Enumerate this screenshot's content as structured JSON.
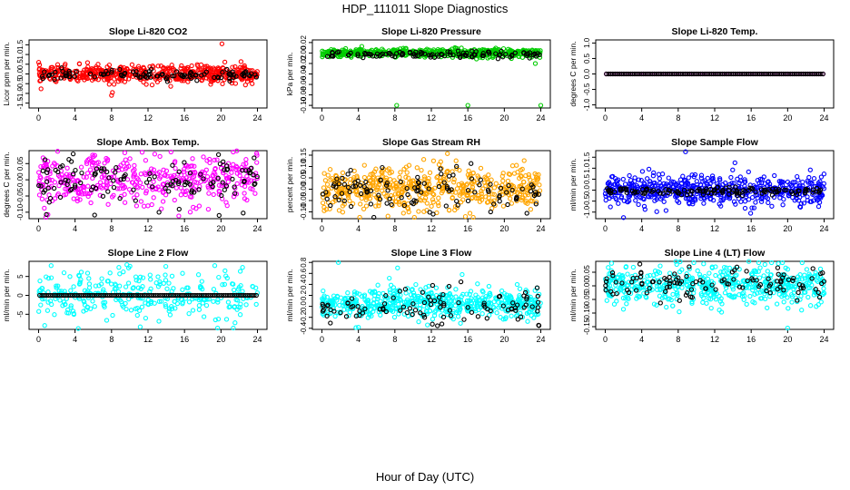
{
  "title": "HDP_111011  Slope Diagnostics",
  "xlabel": "Hour of Day (UTC)",
  "x_ticks": [
    0,
    4,
    8,
    12,
    16,
    20,
    24
  ],
  "chart_data": [
    {
      "type": "scatter",
      "title": "Slope Li-820 CO2",
      "ylabel": "Licor ppm per min.",
      "yticks": [
        -1.5,
        -1.0,
        -0.5,
        0.0,
        0.5,
        1.0,
        1.5
      ],
      "ytick_labels": [
        "-1.5",
        "-1.0",
        "-0.5",
        "0.0",
        "0.5",
        "1.0",
        "1.5"
      ],
      "ylim": [
        -1.75,
        1.75
      ],
      "xlim": [
        0,
        24
      ],
      "series": [
        {
          "color": "#ff0000",
          "center": 0.0,
          "spread": 0.22,
          "count": 520,
          "outliers": [
            [
              20.1,
              1.55
            ],
            [
              8.0,
              -1.1
            ],
            [
              8.1,
              -0.95
            ]
          ]
        },
        {
          "color": "#000000",
          "center": -0.05,
          "spread": 0.12,
          "count": 110,
          "outliers": []
        }
      ]
    },
    {
      "type": "scatter",
      "title": "Slope Li-820 Pressure",
      "ylabel": "kPa per min.",
      "yticks": [
        -0.1,
        -0.08,
        -0.06,
        -0.04,
        -0.02,
        0.0,
        0.02
      ],
      "ytick_labels": [
        "-0.10",
        "-0.08",
        "-0.06",
        "-0.04",
        "-0.02",
        "0.00",
        "0.02"
      ],
      "ylim": [
        -0.105,
        0.025
      ],
      "xlim": [
        0,
        24
      ],
      "series": [
        {
          "color": "#00cc00",
          "center": 0.0,
          "spread": 0.004,
          "count": 520,
          "outliers": [
            [
              8.2,
              -0.1
            ],
            [
              16.0,
              -0.1
            ],
            [
              24.0,
              -0.1
            ],
            [
              23.4,
              -0.02
            ]
          ]
        },
        {
          "color": "#000000",
          "center": -0.003,
          "spread": 0.003,
          "count": 110,
          "outliers": []
        }
      ]
    },
    {
      "type": "scatter",
      "title": "Slope Li-820 Temp.",
      "ylabel": "degrees C per min.",
      "yticks": [
        -1.0,
        -0.5,
        0.0,
        0.5,
        1.0
      ],
      "ytick_labels": [
        "-1.0",
        "-0.5",
        "0.0",
        "0.5",
        "1.0"
      ],
      "ylim": [
        -1.1,
        1.1
      ],
      "xlim": [
        0,
        24
      ],
      "series": [
        {
          "color": "#ff00ff",
          "center": 0.0,
          "spread": 0.0,
          "count": 100,
          "outliers": []
        },
        {
          "color": "#000000",
          "center": 0.0,
          "spread": 0.0,
          "count": 100,
          "outliers": []
        }
      ]
    },
    {
      "type": "scatter",
      "title": "Slope Amb. Box Temp.",
      "ylabel": "degrees C per min.",
      "yticks": [
        -0.1,
        -0.05,
        0.0,
        0.05
      ],
      "ytick_labels": [
        "-0.10",
        "-0.05",
        "0.00",
        "0.05"
      ],
      "ylim": [
        -0.12,
        0.09
      ],
      "xlim": [
        0,
        24
      ],
      "series": [
        {
          "color": "#ff00ff",
          "center": 0.0,
          "spread": 0.038,
          "count": 420,
          "outliers": []
        },
        {
          "color": "#000000",
          "center": -0.01,
          "spread": 0.04,
          "count": 120,
          "outliers": [
            [
              3.8,
              0.08
            ],
            [
              19.8,
              -0.11
            ],
            [
              13.2,
              -0.1
            ]
          ]
        }
      ]
    },
    {
      "type": "scatter",
      "title": "Slope Gas Stream RH",
      "ylabel": "percent per min.",
      "yticks": [
        -0.1,
        -0.05,
        0.0,
        0.05,
        0.1,
        0.15
      ],
      "ytick_labels": [
        "-0.10",
        "-0.05",
        "0.00",
        "0.05",
        "0.10",
        "0.15"
      ],
      "ylim": [
        -0.13,
        0.17
      ],
      "xlim": [
        0,
        24
      ],
      "series": [
        {
          "color": "#ffa500",
          "center": 0.0,
          "spread": 0.05,
          "count": 520,
          "outliers": []
        },
        {
          "color": "#000000",
          "center": 0.0,
          "spread": 0.04,
          "count": 110,
          "outliers": [
            [
              12.2,
              -0.11
            ],
            [
              18.5,
              -0.1
            ],
            [
              13.0,
              0.09
            ]
          ]
        }
      ]
    },
    {
      "type": "scatter",
      "title": "Slope Sample Flow",
      "ylabel": "ml/min per min.",
      "yticks": [
        -1.0,
        -0.5,
        0.0,
        0.5,
        1.0,
        1.5
      ],
      "ytick_labels": [
        "-1.0",
        "-0.5",
        "0.0",
        "0.5",
        "1.0",
        "1.5"
      ],
      "ylim": [
        -1.3,
        1.8
      ],
      "xlim": [
        0,
        24
      ],
      "series": [
        {
          "color": "#0000ff",
          "center": 0.0,
          "spread": 0.35,
          "count": 560,
          "outliers": [
            [
              8.8,
              1.75
            ],
            [
              2.0,
              -1.25
            ]
          ]
        },
        {
          "color": "#000000",
          "center": -0.05,
          "spread": 0.08,
          "count": 130,
          "outliers": []
        }
      ]
    },
    {
      "type": "scatter",
      "title": "Slope Line 2 Flow",
      "ylabel": "ml/min per min.",
      "yticks": [
        -5,
        0,
        5
      ],
      "ytick_labels": [
        "-5",
        "0",
        "5"
      ],
      "ylim": [
        -9,
        9
      ],
      "xlim": [
        0,
        24
      ],
      "series": [
        {
          "color": "#00ffff",
          "center": 0.0,
          "spread": 3.5,
          "count": 300,
          "outliers": []
        },
        {
          "color": "#000000",
          "center": 0.0,
          "spread": 0.0,
          "count": 100,
          "outliers": []
        }
      ]
    },
    {
      "type": "scatter",
      "title": "Slope Line 3 Flow",
      "ylabel": "ml/min per min.",
      "yticks": [
        -0.4,
        -0.2,
        0.0,
        0.2,
        0.4,
        0.6,
        0.8
      ],
      "ytick_labels": [
        "-0.4",
        "-0.2",
        "0.0",
        "0.2",
        "0.4",
        "0.6",
        "0.8"
      ],
      "ylim": [
        -0.42,
        0.82
      ],
      "xlim": [
        0,
        24
      ],
      "series": [
        {
          "color": "#00ffff",
          "center": 0.05,
          "spread": 0.14,
          "count": 560,
          "outliers": [
            [
              1.8,
              0.8
            ],
            [
              8.3,
              0.7
            ],
            [
              4.0,
              -0.38
            ]
          ]
        },
        {
          "color": "#000000",
          "center": 0.0,
          "spread": 0.15,
          "count": 100,
          "outliers": [
            [
              23.8,
              -0.35
            ]
          ]
        }
      ]
    },
    {
      "type": "scatter",
      "title": "Slope Line 4 (LT) Flow",
      "ylabel": "ml/min per min.",
      "yticks": [
        -0.15,
        -0.1,
        -0.05,
        0.0,
        0.05
      ],
      "ytick_labels": [
        "-0.15",
        "-0.10",
        "-0.05",
        "0.00",
        "0.05"
      ],
      "ylim": [
        -0.16,
        0.09
      ],
      "xlim": [
        0,
        24
      ],
      "series": [
        {
          "color": "#00ffff",
          "center": 0.0,
          "spread": 0.035,
          "count": 520,
          "outliers": [
            [
              20.0,
              -0.155
            ]
          ]
        },
        {
          "color": "#000000",
          "center": 0.01,
          "spread": 0.03,
          "count": 110,
          "outliers": [
            [
              3.8,
              0.08
            ],
            [
              9.2,
              0.07
            ]
          ]
        }
      ]
    }
  ]
}
